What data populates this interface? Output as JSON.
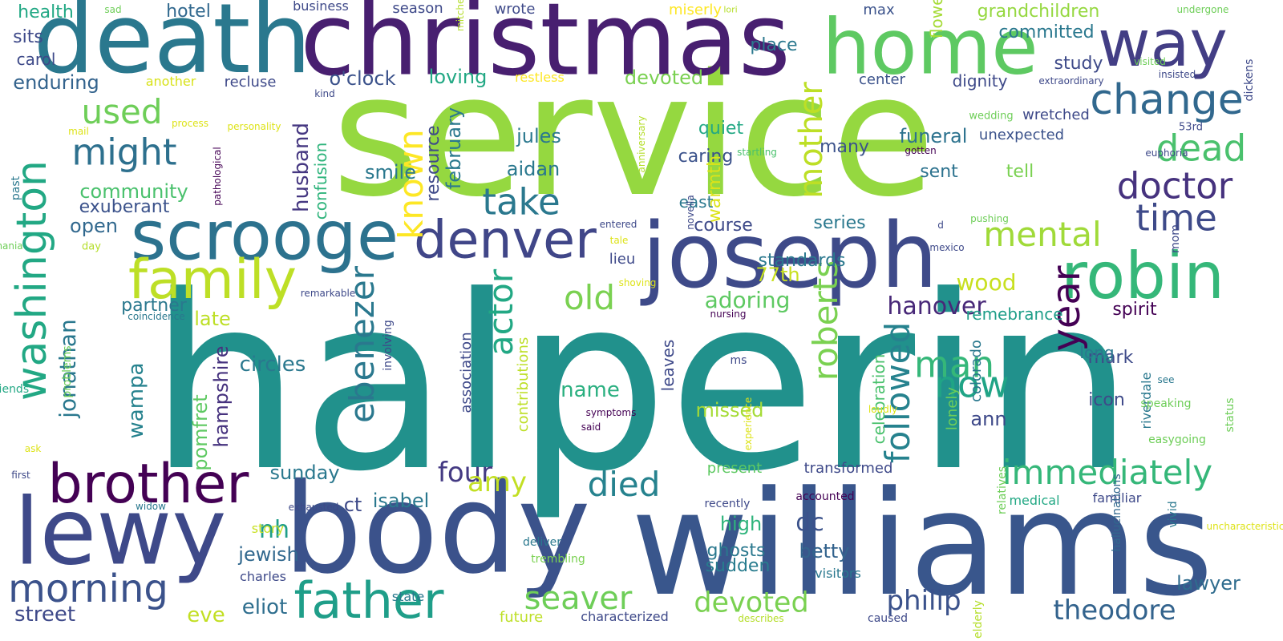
{
  "words": [
    {
      "text": "halperin",
      "color": "#21918c",
      "o": "h"
    },
    {
      "text": "service",
      "color": "#95d840",
      "o": "h"
    },
    {
      "text": "williams",
      "color": "#39568c",
      "o": "h"
    },
    {
      "text": "christmas",
      "color": "#481f70",
      "o": "h"
    },
    {
      "text": "death",
      "color": "#2a788e",
      "o": "h"
    },
    {
      "text": "body",
      "color": "#3b528b",
      "o": "h"
    },
    {
      "text": "home",
      "color": "#5ec962",
      "o": "h"
    },
    {
      "text": "joseph",
      "color": "#3e4a89",
      "o": "h"
    },
    {
      "text": "lewy",
      "color": "#3e4989",
      "o": "h"
    },
    {
      "text": "scrooge",
      "color": "#2c728e",
      "o": "h"
    },
    {
      "text": "robin",
      "color": "#35b779",
      "o": "h"
    },
    {
      "text": "way",
      "color": "#433e85",
      "o": "h"
    },
    {
      "text": "washington",
      "color": "#22a884",
      "o": "v"
    },
    {
      "text": "brother",
      "color": "#440154",
      "o": "h"
    },
    {
      "text": "family",
      "color": "#bddf26",
      "o": "h"
    },
    {
      "text": "denver",
      "color": "#404688",
      "o": "h"
    },
    {
      "text": "father",
      "color": "#1f9e89",
      "o": "h"
    },
    {
      "text": "morning",
      "color": "#3b528b",
      "o": "h"
    },
    {
      "text": "change",
      "color": "#31688e",
      "o": "h"
    },
    {
      "text": "might",
      "color": "#2d708e",
      "o": "h"
    },
    {
      "text": "take",
      "color": "#2a788e",
      "o": "h"
    },
    {
      "text": "dead",
      "color": "#4ac16d",
      "o": "h"
    },
    {
      "text": "doctor",
      "color": "#46327e",
      "o": "h"
    },
    {
      "text": "time",
      "color": "#3e4a89",
      "o": "h"
    },
    {
      "text": "old",
      "color": "#7ad151",
      "o": "h"
    },
    {
      "text": "used",
      "color": "#6ece58",
      "o": "h"
    },
    {
      "text": "mental",
      "color": "#a0da39",
      "o": "h"
    },
    {
      "text": "mother",
      "color": "#bddf26",
      "o": "v"
    },
    {
      "text": "ebenezer",
      "color": "#2a788e",
      "o": "v"
    },
    {
      "text": "known",
      "color": "#fde725",
      "o": "v"
    },
    {
      "text": "actor",
      "color": "#22a884",
      "o": "v"
    },
    {
      "text": "roberts",
      "color": "#7ad151",
      "o": "v"
    },
    {
      "text": "immediately",
      "color": "#35b779",
      "o": "h"
    },
    {
      "text": "died",
      "color": "#26828e",
      "o": "h"
    },
    {
      "text": "man",
      "color": "#35b779",
      "o": "h"
    },
    {
      "text": "now",
      "color": "#20a486",
      "o": "h"
    },
    {
      "text": "year",
      "color": "#440154",
      "o": "v"
    },
    {
      "text": "followed",
      "color": "#26828e",
      "o": "v"
    },
    {
      "text": "seaver",
      "color": "#6ece58",
      "o": "h"
    },
    {
      "text": "devoted",
      "color": "#7ad151",
      "o": "h"
    },
    {
      "text": "theodore",
      "color": "#33638d",
      "o": "h"
    },
    {
      "text": "philip",
      "color": "#3b528b",
      "o": "h"
    },
    {
      "text": "four",
      "color": "#443a83",
      "o": "h"
    },
    {
      "text": "amy",
      "color": "#c2df23",
      "o": "h"
    },
    {
      "text": "hanover",
      "color": "#482878",
      "o": "h"
    },
    {
      "text": "adoring",
      "color": "#5ec962",
      "o": "h"
    },
    {
      "text": "wood",
      "color": "#c8e020",
      "o": "h"
    },
    {
      "text": "jonathan",
      "color": "#2a788e",
      "o": "v"
    },
    {
      "text": "wampa",
      "color": "#26828e",
      "o": "v"
    },
    {
      "text": "nh",
      "color": "#1f9e89",
      "o": "h"
    },
    {
      "text": "dc",
      "color": "#3b528b",
      "o": "h"
    },
    {
      "text": "eliot",
      "color": "#2e6e8e",
      "o": "h"
    },
    {
      "text": "street",
      "color": "#3e4989",
      "o": "h"
    },
    {
      "text": "eve",
      "color": "#c2df23",
      "o": "h"
    },
    {
      "text": "christmas",
      "color": "#481f70",
      "o": "h"
    },
    {
      "text": "ann",
      "color": "#3e4989",
      "o": "h"
    },
    {
      "text": "betty",
      "color": "#33638d",
      "o": "h"
    },
    {
      "text": "lawyer",
      "color": "#2f6c8e",
      "o": "h"
    },
    {
      "text": "high",
      "color": "#2fb47c",
      "o": "h"
    },
    {
      "text": "ghosts",
      "color": "#2a788e",
      "o": "h"
    },
    {
      "text": "sudden",
      "color": "#287c8e",
      "o": "h"
    },
    {
      "text": "missed",
      "color": "#a5db36",
      "o": "h"
    },
    {
      "text": "name",
      "color": "#29af7f",
      "o": "h"
    },
    {
      "text": "jewish",
      "color": "#31688e",
      "o": "h"
    },
    {
      "text": "isabel",
      "color": "#2a788e",
      "o": "h"
    },
    {
      "text": "ct",
      "color": "#3e4a89",
      "o": "h"
    },
    {
      "text": "sunday",
      "color": "#2a788e",
      "o": "h"
    },
    {
      "text": "circles",
      "color": "#2a788e",
      "o": "h"
    },
    {
      "text": "hampshire",
      "color": "#46327e",
      "o": "v"
    },
    {
      "text": "pomfret",
      "color": "#5ec962",
      "o": "v"
    },
    {
      "text": "late",
      "color": "#bddf26",
      "o": "h"
    },
    {
      "text": "partner",
      "color": "#2a788e",
      "o": "h"
    },
    {
      "text": "open",
      "color": "#31688e",
      "o": "h"
    },
    {
      "text": "exuberant",
      "color": "#3b528b",
      "o": "h"
    },
    {
      "text": "community",
      "color": "#4ac16d",
      "o": "h"
    },
    {
      "text": "husband",
      "color": "#453781",
      "o": "v"
    },
    {
      "text": "confusion",
      "color": "#2fb47c",
      "o": "v"
    },
    {
      "text": "smile",
      "color": "#2a788e",
      "o": "h"
    },
    {
      "text": "february",
      "color": "#2a788e",
      "o": "v"
    },
    {
      "text": "resource",
      "color": "#3e4989",
      "o": "v"
    },
    {
      "text": "jules",
      "color": "#2a788e",
      "o": "h"
    },
    {
      "text": "aidan",
      "color": "#2a788e",
      "o": "h"
    },
    {
      "text": "loving",
      "color": "#22a884",
      "o": "h"
    },
    {
      "text": "o'clock",
      "color": "#3b528b",
      "o": "h"
    },
    {
      "text": "hotel",
      "color": "#31688e",
      "o": "h"
    },
    {
      "text": "health",
      "color": "#22a884",
      "o": "h"
    },
    {
      "text": "sits",
      "color": "#3e4989",
      "o": "h"
    },
    {
      "text": "enduring",
      "color": "#33638d",
      "o": "h"
    },
    {
      "text": "carol",
      "color": "#3e4a89",
      "o": "h"
    },
    {
      "text": "recluse",
      "color": "#3e4989",
      "o": "h"
    },
    {
      "text": "another",
      "color": "#d8e219",
      "o": "h"
    },
    {
      "text": "place",
      "color": "#2a788e",
      "o": "h"
    },
    {
      "text": "devoted",
      "color": "#7ad151",
      "o": "h"
    },
    {
      "text": "grandchildren",
      "color": "#95d840",
      "o": "h"
    },
    {
      "text": "committed",
      "color": "#2a788e",
      "o": "h"
    },
    {
      "text": "study",
      "color": "#3e4a89",
      "o": "h"
    },
    {
      "text": "dignity",
      "color": "#3e4989",
      "o": "h"
    },
    {
      "text": "center",
      "color": "#3b528b",
      "o": "h"
    },
    {
      "text": "wretched",
      "color": "#3e4989",
      "o": "h"
    },
    {
      "text": "unexpected",
      "color": "#3b528b",
      "o": "h"
    },
    {
      "text": "tell",
      "color": "#7ad151",
      "o": "h"
    },
    {
      "text": "sent",
      "color": "#2c728e",
      "o": "h"
    },
    {
      "text": "funeral",
      "color": "#2c728e",
      "o": "h"
    },
    {
      "text": "caring",
      "color": "#3b528b",
      "o": "h"
    },
    {
      "text": "quiet",
      "color": "#22a884",
      "o": "h"
    },
    {
      "text": "many",
      "color": "#3b528b",
      "o": "h"
    },
    {
      "text": "warmth",
      "color": "#dde318",
      "o": "v"
    },
    {
      "text": "east",
      "color": "#2a788e",
      "o": "h"
    },
    {
      "text": "course",
      "color": "#3e4a89",
      "o": "h"
    },
    {
      "text": "series",
      "color": "#2a788e",
      "o": "h"
    },
    {
      "text": "standards",
      "color": "#2a788e",
      "o": "h"
    },
    {
      "text": "77th",
      "color": "#c8e020",
      "o": "h"
    },
    {
      "text": "lieu",
      "color": "#3e4989",
      "o": "h"
    },
    {
      "text": "spirit",
      "color": "#440154",
      "o": "h"
    },
    {
      "text": "remebrance",
      "color": "#1f9e89",
      "o": "h"
    },
    {
      "text": "icon",
      "color": "#3e4989",
      "o": "h"
    },
    {
      "text": "mark",
      "color": "#3e4a89",
      "o": "h"
    },
    {
      "text": "long",
      "color": "#2a788e",
      "o": "h"
    },
    {
      "text": "riverdale",
      "color": "#2a788e",
      "o": "v"
    },
    {
      "text": "celebration",
      "color": "#4ac16d",
      "o": "v"
    },
    {
      "text": "colorado",
      "color": "#2a788e",
      "o": "v"
    },
    {
      "text": "lonely",
      "color": "#6ece58",
      "o": "v"
    },
    {
      "text": "leaves",
      "color": "#3e4989",
      "o": "v"
    },
    {
      "text": "association",
      "color": "#3e4989",
      "o": "v"
    },
    {
      "text": "contributions",
      "color": "#bddf26",
      "o": "v"
    },
    {
      "text": "flowers",
      "color": "#a5db36",
      "o": "v"
    },
    {
      "text": "max",
      "color": "#3b528b",
      "o": "h"
    },
    {
      "text": "miserly",
      "color": "#fde725",
      "o": "h"
    },
    {
      "text": "business",
      "color": "#3e4989",
      "o": "h"
    },
    {
      "text": "season",
      "color": "#3e4989",
      "o": "h"
    },
    {
      "text": "wrote",
      "color": "#3e4989",
      "o": "h"
    },
    {
      "text": "restless",
      "color": "#fde725",
      "o": "h"
    },
    {
      "text": "present",
      "color": "#5ec962",
      "o": "h"
    },
    {
      "text": "transformed",
      "color": "#3e4989",
      "o": "h"
    },
    {
      "text": "medical",
      "color": "#22a884",
      "o": "h"
    },
    {
      "text": "familiar",
      "color": "#3e4989",
      "o": "h"
    },
    {
      "text": "visitors",
      "color": "#2a788e",
      "o": "h"
    },
    {
      "text": "state",
      "color": "#2a788e",
      "o": "h"
    },
    {
      "text": "charles",
      "color": "#3e4989",
      "o": "h"
    },
    {
      "text": "story",
      "color": "#c8e020",
      "o": "h"
    },
    {
      "text": "future",
      "color": "#bddf26",
      "o": "h"
    },
    {
      "text": "characterized",
      "color": "#3e4989",
      "o": "h"
    },
    {
      "text": "friends",
      "color": "#22a884",
      "o": "h"
    },
    {
      "text": "problems",
      "color": "#6ece58",
      "o": "v"
    },
    {
      "text": "past",
      "color": "#2a788e",
      "o": "v"
    },
    {
      "text": "involving",
      "color": "#3e4989",
      "o": "v"
    },
    {
      "text": "hallucinations",
      "color": "#31688e",
      "o": "v"
    },
    {
      "text": "vivid",
      "color": "#2a788e",
      "o": "v"
    },
    {
      "text": "relatives",
      "color": "#6ece58",
      "o": "v"
    },
    {
      "text": "status",
      "color": "#6ece58",
      "o": "v"
    },
    {
      "text": "dickens",
      "color": "#3e4989",
      "o": "v"
    },
    {
      "text": "elderly",
      "color": "#b5de2b",
      "o": "v"
    },
    {
      "text": "caused",
      "color": "#3e4989",
      "o": "h"
    },
    {
      "text": "describes",
      "color": "#b5de2b",
      "o": "h"
    },
    {
      "text": "accounted",
      "color": "#440154",
      "o": "h"
    },
    {
      "text": "recently",
      "color": "#3e4989",
      "o": "h"
    },
    {
      "text": "trembling",
      "color": "#7ad151",
      "o": "h"
    },
    {
      "text": "deliver",
      "color": "#2a788e",
      "o": "h"
    },
    {
      "text": "widow",
      "color": "#2a788e",
      "o": "h"
    },
    {
      "text": "exhausted",
      "color": "#3e4989",
      "o": "h"
    },
    {
      "text": "first",
      "color": "#3e4989",
      "o": "h"
    },
    {
      "text": "ask",
      "color": "#dde318",
      "o": "h"
    },
    {
      "text": "easygoing",
      "color": "#6ece58",
      "o": "h"
    },
    {
      "text": "speaking",
      "color": "#6ece58",
      "o": "h"
    },
    {
      "text": "see",
      "color": "#2a788e",
      "o": "h"
    },
    {
      "text": "loudly",
      "color": "#dde318",
      "o": "h"
    },
    {
      "text": "experience",
      "color": "#dde318",
      "o": "v"
    },
    {
      "text": "symptoms",
      "color": "#440154",
      "o": "h"
    },
    {
      "text": "said",
      "color": "#440154",
      "o": "h"
    },
    {
      "text": "ms",
      "color": "#3e4989",
      "o": "h"
    },
    {
      "text": "nursing",
      "color": "#440154",
      "o": "h"
    },
    {
      "text": "coincidence",
      "color": "#2a788e",
      "o": "h"
    },
    {
      "text": "remarkable",
      "color": "#3e4989",
      "o": "h"
    },
    {
      "text": "day",
      "color": "#b5de2b",
      "o": "h"
    },
    {
      "text": "mania",
      "color": "#6ece58",
      "o": "h"
    },
    {
      "text": "pathological",
      "color": "#440154",
      "o": "v"
    },
    {
      "text": "personality",
      "color": "#dde318",
      "o": "h"
    },
    {
      "text": "mail",
      "color": "#dde318",
      "o": "h"
    },
    {
      "text": "kind",
      "color": "#3e4989",
      "o": "h"
    },
    {
      "text": "process",
      "color": "#dde318",
      "o": "h"
    },
    {
      "text": "mitchell",
      "color": "#b5de2b",
      "o": "v"
    },
    {
      "text": "sad",
      "color": "#6ece58",
      "o": "h"
    },
    {
      "text": "lori",
      "color": "#b5de2b",
      "o": "h"
    },
    {
      "text": "undergone",
      "color": "#6ece58",
      "o": "h"
    },
    {
      "text": "visited",
      "color": "#6ece58",
      "o": "h"
    },
    {
      "text": "insisted",
      "color": "#3e4989",
      "o": "h"
    },
    {
      "text": "extraordinary",
      "color": "#3e4989",
      "o": "h"
    },
    {
      "text": "wedding",
      "color": "#6ece58",
      "o": "h"
    },
    {
      "text": "53rd",
      "color": "#3e4989",
      "o": "h"
    },
    {
      "text": "euphoria",
      "color": "#3e4989",
      "o": "h"
    },
    {
      "text": "gotten",
      "color": "#440154",
      "o": "h"
    },
    {
      "text": "startling",
      "color": "#4ac16d",
      "o": "h"
    },
    {
      "text": "anniversary",
      "color": "#b5de2b",
      "o": "v"
    },
    {
      "text": "novella",
      "color": "#3e4989",
      "o": "v"
    },
    {
      "text": "entered",
      "color": "#3e4989",
      "o": "h"
    },
    {
      "text": "tale",
      "color": "#dde318",
      "o": "h"
    },
    {
      "text": "shoving",
      "color": "#dde318",
      "o": "h"
    },
    {
      "text": "d",
      "color": "#3e4989",
      "o": "h"
    },
    {
      "text": "pushing",
      "color": "#6ece58",
      "o": "h"
    },
    {
      "text": "mexico",
      "color": "#3e4989",
      "o": "h"
    },
    {
      "text": "mom",
      "color": "#3e4989",
      "o": "v"
    },
    {
      "text": "uncharacteristic",
      "color": "#dde318",
      "o": "h"
    },
    {
      "text": "physical",
      "color": "#440154",
      "o": "v"
    }
  ]
}
